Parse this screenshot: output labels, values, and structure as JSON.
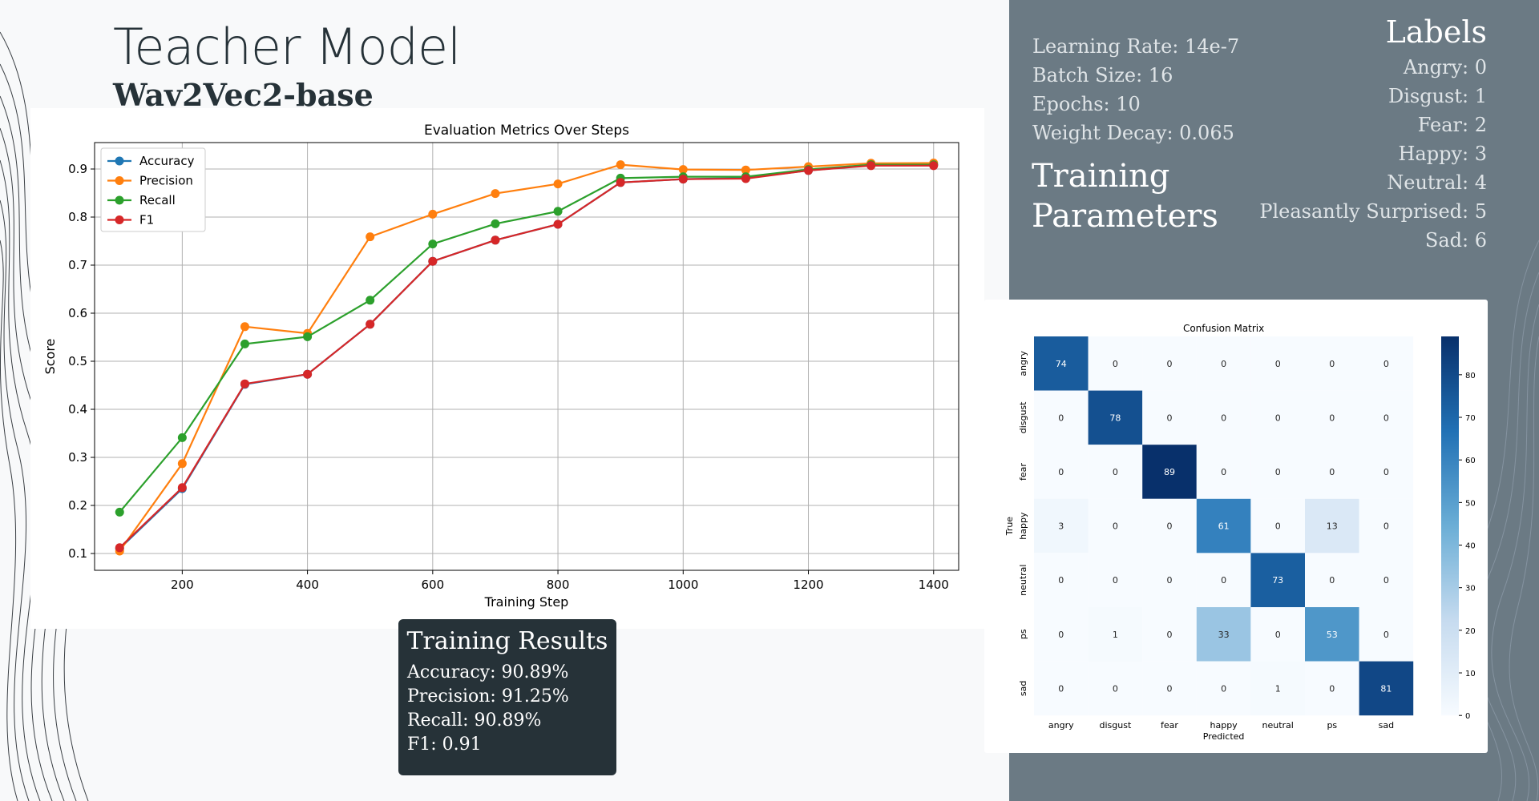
{
  "header": {
    "title": "Teacher Model",
    "subtitle": "Wav2Vec2-base"
  },
  "params": {
    "learning_rate": "Learning Rate: 14e-7",
    "batch_size": "Batch Size: 16",
    "epochs": "Epochs: 10",
    "weight_decay": "Weight Decay: 0.065",
    "heading_line1": "Training",
    "heading_line2": "Parameters"
  },
  "labels": {
    "heading": "Labels",
    "items": [
      "Angry: 0",
      "Disgust: 1",
      "Fear: 2",
      "Happy: 3",
      "Neutral: 4",
      "Pleasantly Surprised: 5",
      "Sad: 6"
    ]
  },
  "results": {
    "title": "Training Results",
    "accuracy": "Accuracy: 90.89%",
    "precision": "Precision: 91.25%",
    "recall": "Recall: 90.89%",
    "f1": "F1: 0.91"
  },
  "colors": {
    "panel": "#6b7a84",
    "dark": "#263238",
    "accuracy": "#1f77b4",
    "precision": "#ff7f0e",
    "recall": "#2ca02c",
    "f1": "#d62728"
  },
  "chart_data": [
    {
      "type": "line",
      "title": "Evaluation Metrics Over Steps",
      "xlabel": "Training Step",
      "ylabel": "Score",
      "xlim": [
        60,
        1440
      ],
      "ylim": [
        0.065,
        0.955
      ],
      "xticks": [
        200,
        400,
        600,
        800,
        1000,
        1200,
        1400
      ],
      "yticks": [
        0.1,
        0.2,
        0.3,
        0.4,
        0.5,
        0.6,
        0.7,
        0.8,
        0.9
      ],
      "grid": true,
      "legend": "top-left",
      "x": [
        100,
        200,
        300,
        400,
        500,
        600,
        700,
        800,
        900,
        1000,
        1100,
        1200,
        1300,
        1400
      ],
      "series": [
        {
          "name": "Accuracy",
          "color": "#1f77b4",
          "values": [
            0.11,
            0.235,
            0.452,
            0.473,
            0.577,
            0.708,
            0.752,
            0.785,
            0.872,
            0.879,
            0.881,
            0.897,
            0.908,
            0.909
          ]
        },
        {
          "name": "Precision",
          "color": "#ff7f0e",
          "values": [
            0.105,
            0.287,
            0.572,
            0.558,
            0.759,
            0.806,
            0.849,
            0.869,
            0.909,
            0.899,
            0.898,
            0.905,
            0.912,
            0.9125
          ]
        },
        {
          "name": "Recall",
          "color": "#2ca02c",
          "values": [
            0.186,
            0.341,
            0.536,
            0.551,
            0.627,
            0.744,
            0.786,
            0.812,
            0.881,
            0.884,
            0.884,
            0.899,
            0.909,
            0.909
          ]
        },
        {
          "name": "F1",
          "color": "#d62728",
          "values": [
            0.112,
            0.237,
            0.453,
            0.473,
            0.577,
            0.708,
            0.752,
            0.785,
            0.872,
            0.879,
            0.88,
            0.897,
            0.907,
            0.907
          ]
        }
      ]
    },
    {
      "type": "heatmap",
      "title": "Confusion Matrix",
      "xlabel": "Predicted",
      "ylabel": "True",
      "categories": [
        "angry",
        "disgust",
        "fear",
        "happy",
        "neutral",
        "ps",
        "sad"
      ],
      "matrix": [
        [
          74,
          0,
          0,
          0,
          0,
          0,
          0
        ],
        [
          0,
          78,
          0,
          0,
          0,
          0,
          0
        ],
        [
          0,
          0,
          89,
          0,
          0,
          0,
          0
        ],
        [
          3,
          0,
          0,
          61,
          0,
          13,
          0
        ],
        [
          0,
          0,
          0,
          0,
          73,
          0,
          0
        ],
        [
          0,
          1,
          0,
          33,
          0,
          53,
          0
        ],
        [
          0,
          0,
          0,
          0,
          1,
          0,
          81
        ]
      ],
      "colorbar_ticks": [
        0,
        10,
        20,
        30,
        40,
        50,
        60,
        70,
        80
      ],
      "vmax": 89
    }
  ]
}
